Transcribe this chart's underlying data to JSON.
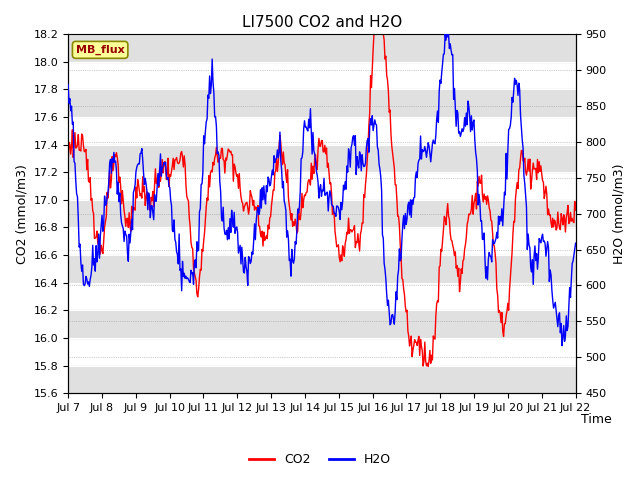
{
  "title": "LI7500 CO2 and H2O",
  "xlabel": "Time",
  "ylabel_left": "CO2 (mmol/m3)",
  "ylabel_right": "H2O (mmol/m3)",
  "xtick_labels": [
    "Jul 7",
    "Jul 8",
    "Jul 9",
    "Jul 10",
    "Jul 11",
    "Jul 12",
    "Jul 13",
    "Jul 14",
    "Jul 15",
    "Jul 16",
    "Jul 17",
    "Jul 18",
    "Jul 19",
    "Jul 20",
    "Jul 21",
    "Jul 22"
  ],
  "ylim_left": [
    15.6,
    18.2
  ],
  "ylim_right": [
    450,
    950
  ],
  "co2_color": "#ff0000",
  "h2o_color": "#0000ff",
  "background_color": "#ffffff",
  "plot_bg_color": "#ffffff",
  "band_color": "#e0e0e0",
  "mb_flux_label": "MB_flux",
  "mb_flux_bg": "#ffff99",
  "mb_flux_border": "#888800",
  "legend_co2": "CO2",
  "legend_h2o": "H2O",
  "title_fontsize": 11,
  "axis_label_fontsize": 9,
  "tick_fontsize": 8,
  "line_width": 1.0
}
